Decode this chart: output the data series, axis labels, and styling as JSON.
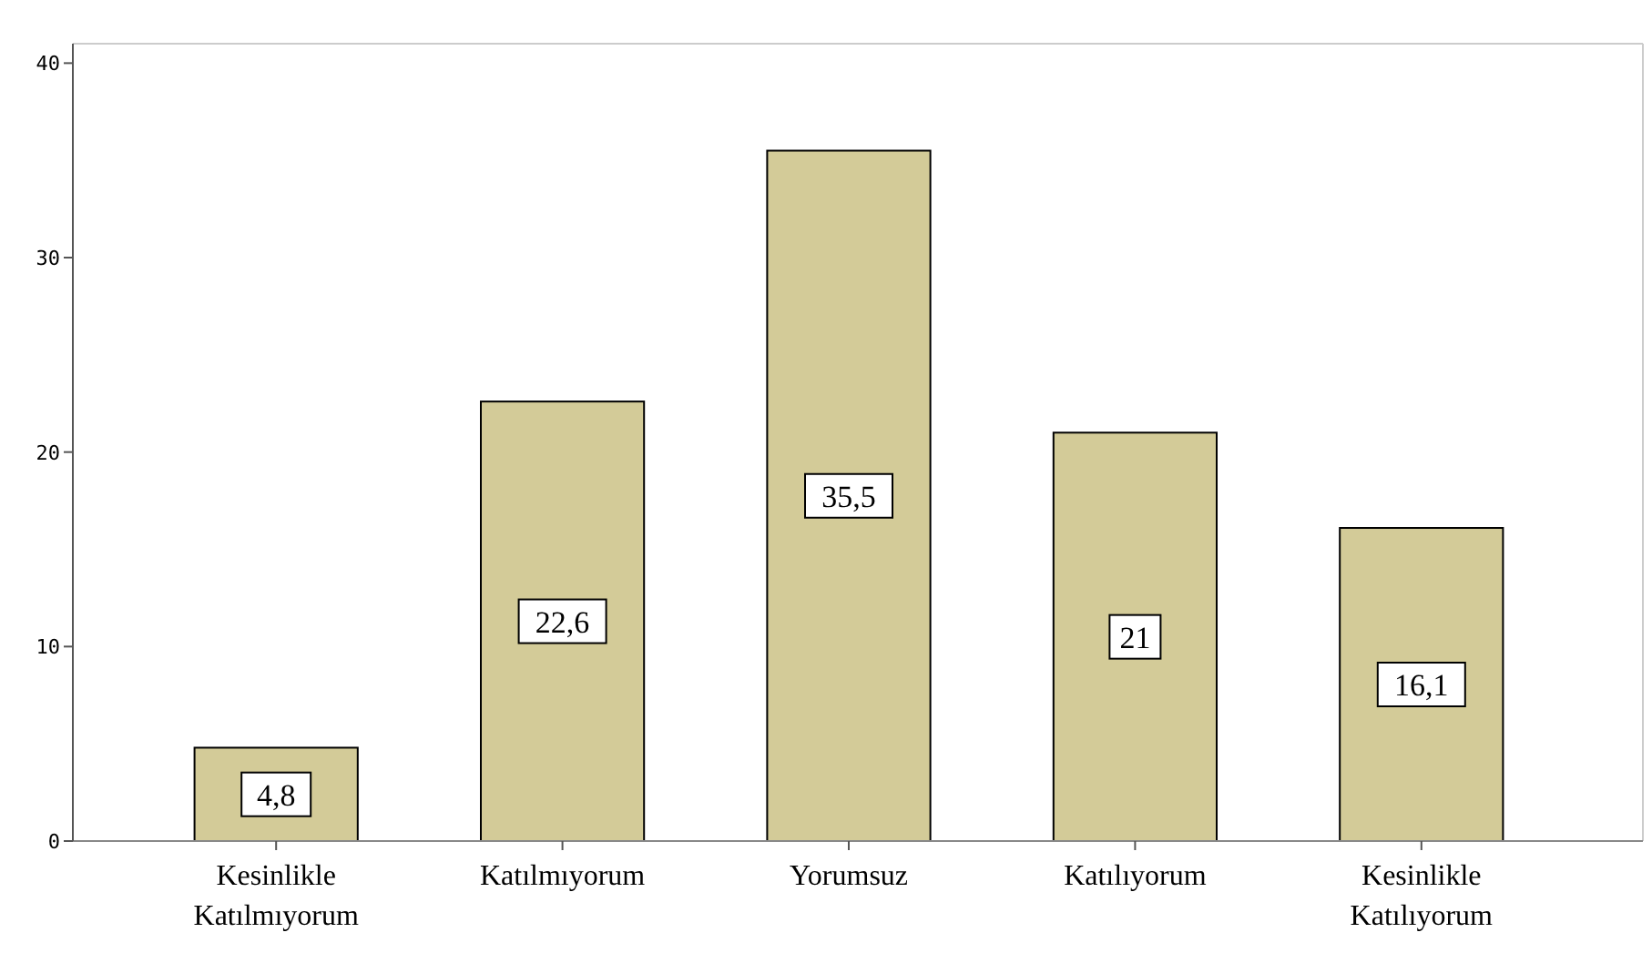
{
  "chart_data": {
    "type": "bar",
    "categories": [
      "Kesinlikle Katılmıyorum",
      "Katılmıyorum",
      "Yorumsuz",
      "Katılıyorum",
      "Kesinlikle Katılıyorum"
    ],
    "values": [
      4.8,
      22.6,
      35.5,
      21,
      16.1
    ],
    "value_labels": [
      "4,8",
      "22,6",
      "35,5",
      "21",
      "16,1"
    ],
    "color": "#d3cb98",
    "ylim": [
      0,
      41
    ],
    "yticks": [
      0,
      10,
      20,
      30,
      40
    ],
    "grid": false
  }
}
